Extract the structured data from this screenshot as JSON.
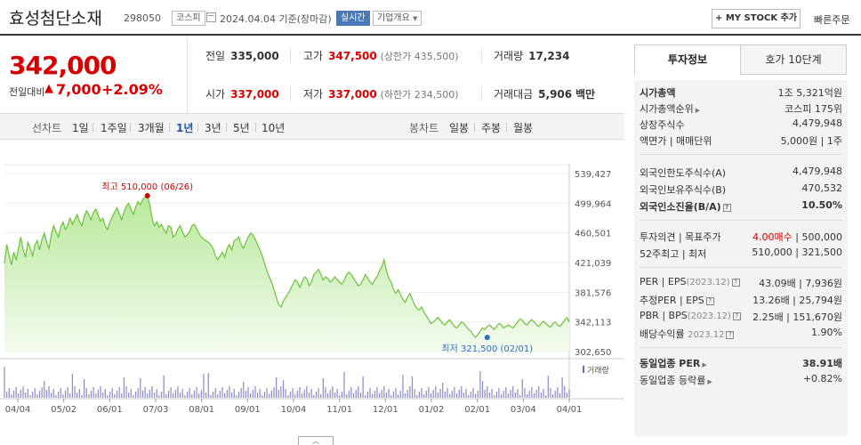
{
  "header": {
    "stock_name": "효성첨단소재",
    "stock_code": "298050",
    "market": "코스피",
    "date": "2024.04.04 기준(장마감)",
    "live_label": "실시간",
    "company_info_label": "기업개요",
    "mystock_label": "+ MY STOCK 추가",
    "quick_order_label": "빠른주문"
  },
  "price": {
    "current": "342,000",
    "change_label": "전일대비",
    "change_arrow": "▲",
    "change": "7,000",
    "rate": "+2.09%"
  },
  "quote": {
    "prev_close_label": "전일",
    "prev_close": "335,000",
    "high_label": "고가",
    "high": "347,500",
    "upper_limit": "(상한가 435,500)",
    "volume_label": "거래량",
    "volume": "17,234",
    "open_label": "시가",
    "open": "337,000",
    "low_label": "저가",
    "low": "337,000",
    "lower_limit": "(하한가 234,500)",
    "amount_label": "거래대금",
    "amount": "5,906",
    "amount_unit": "백만"
  },
  "range_bar": {
    "line_label": "선차트",
    "line_ranges": [
      "1일",
      "1주일",
      "3개월",
      "1년",
      "3년",
      "5년",
      "10년"
    ],
    "active": "1년",
    "candle_label": "봉차트",
    "candle_ranges": [
      "일봉",
      "주봉",
      "월봉"
    ]
  },
  "chart_data": {
    "type": "area",
    "y_ticks": [
      "539,427",
      "499,964",
      "460,501",
      "421,039",
      "381,576",
      "342,113",
      "302,650"
    ],
    "ylim": [
      302650,
      539427
    ],
    "x_ticks": [
      "04/04",
      "05/02",
      "06/01",
      "07/03",
      "08/01",
      "09/01",
      "10/04",
      "11/01",
      "12/01",
      "01/02",
      "02/01",
      "03/04",
      "04/01"
    ],
    "high_annotation": "최고 510,000 (06/26)",
    "low_annotation": "최저 321,500 (02/01)",
    "high_point": {
      "x_index": 61,
      "value": 510000
    },
    "low_point": {
      "x_index": 206,
      "value": 321500
    },
    "volume_label": "거래량",
    "series": [
      {
        "values": [
          420000,
          445000,
          430000,
          418000,
          435000,
          425000,
          440000,
          455000,
          438000,
          428000,
          448000,
          440000,
          430000,
          445000,
          450000,
          438000,
          452000,
          460000,
          448000,
          440000,
          458000,
          470000,
          462000,
          455000,
          468000,
          475000,
          465000,
          470000,
          480000,
          472000,
          478000,
          485000,
          476000,
          470000,
          482000,
          490000,
          485000,
          478000,
          488000,
          492000,
          484000,
          476000,
          480000,
          470000,
          465000,
          475000,
          482000,
          488000,
          494000,
          486000,
          478000,
          488000,
          496000,
          500000,
          492000,
          485000,
          495000,
          502000,
          498000,
          505000,
          508000,
          510000,
          498000,
          480000,
          470000,
          475000,
          468000,
          472000,
          465000,
          460000,
          470000,
          468000,
          455000,
          458000,
          466000,
          470000,
          462000,
          455000,
          458000,
          462000,
          470000,
          472000,
          466000,
          460000,
          455000,
          452000,
          450000,
          448000,
          445000,
          440000,
          430000,
          425000,
          430000,
          435000,
          428000,
          440000,
          445000,
          438000,
          450000,
          452000,
          455000,
          445000,
          440000,
          448000,
          455000,
          460000,
          458000,
          452000,
          445000,
          438000,
          430000,
          420000,
          410000,
          402000,
          395000,
          385000,
          375000,
          365000,
          362000,
          370000,
          375000,
          380000,
          385000,
          392000,
          398000,
          395000,
          388000,
          395000,
          402000,
          400000,
          390000,
          395000,
          405000,
          408000,
          412000,
          405000,
          398000,
          402000,
          400000,
          395000,
          398000,
          402000,
          398000,
          395000,
          392000,
          398000,
          405000,
          408000,
          405000,
          400000,
          395000,
          390000,
          392000,
          398000,
          405000,
          400000,
          395000,
          392000,
          398000,
          402000,
          410000,
          415000,
          425000,
          410000,
          400000,
          395000,
          385000,
          380000,
          385000,
          378000,
          372000,
          368000,
          375000,
          380000,
          372000,
          365000,
          360000,
          358000,
          362000,
          355000,
          350000,
          345000,
          340000,
          342000,
          345000,
          348000,
          344000,
          340000,
          338000,
          342000,
          345000,
          340000,
          336000,
          334000,
          338000,
          342000,
          340000,
          336000,
          332000,
          330000,
          325000,
          321500,
          325000,
          330000,
          334000,
          332000,
          336000,
          338000,
          335000,
          332000,
          336000,
          340000,
          338000,
          334000,
          336000,
          338000,
          336000,
          334000,
          338000,
          342000,
          346000,
          344000,
          340000,
          338000,
          342000,
          345000,
          342000,
          338000,
          336000,
          340000,
          343000,
          340000,
          337000,
          335000,
          340000,
          342000,
          338000,
          336000,
          340000,
          344000,
          348000,
          342000
        ]
      }
    ]
  },
  "side": {
    "tab_active": "투자정보",
    "tab_other": "호가 10단계",
    "market_cap_label": "시가총액",
    "market_cap": "1조 5,321억원",
    "market_cap_rank_label": "시가총액순위",
    "market_cap_rank": "코스피 175위",
    "shares_label": "상장주식수",
    "shares": "4,479,948",
    "par_label": "액면가 | 매매단위",
    "par": "5,000원 | 1주",
    "foreign_limit_label": "외국인한도주식수(A)",
    "foreign_limit": "4,479,948",
    "foreign_hold_label": "외국인보유주식수(B)",
    "foreign_hold": "470,532",
    "foreign_rate_label": "외국인소진율(B/A)",
    "foreign_rate": "10.50%",
    "opinion_label": "투자의견 | 목표주가",
    "opinion": "4.00매수",
    "target": "500,000",
    "w52_label": "52주최고 | 최저",
    "w52": "510,000 | 321,500",
    "per_label": "PER | EPS",
    "per_year": "(2023.12)",
    "per": "43.09배 | 7,936원",
    "est_per_label": "추정PER | EPS",
    "est_per": "13.26배 | 25,794원",
    "pbr_label": "PBR | BPS",
    "pbr_year": "(2023.12)",
    "pbr": "2.25배 | 151,670원",
    "div_label": "배당수익률",
    "div_year": "2023.12",
    "div": "1.90%",
    "ind_per_label": "동일업종 PER",
    "ind_per": "38.91배",
    "ind_rate_label": "동일업종 등락률",
    "ind_rate": "+0.82%"
  }
}
